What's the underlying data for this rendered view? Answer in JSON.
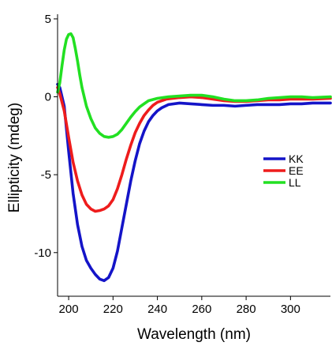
{
  "chart_data": {
    "type": "line",
    "xlabel": "Wavelength (nm)",
    "ylabel": "Ellipticity (mdeg)",
    "xlim": [
      195,
      318
    ],
    "ylim": [
      -12.8,
      5.3
    ],
    "x_ticks": [
      200,
      220,
      240,
      260,
      280,
      300
    ],
    "y_ticks": [
      5,
      0,
      -5,
      -10
    ],
    "grid": false,
    "legend_position": "right-center",
    "series": [
      {
        "name": "KK",
        "color": "#1414c8",
        "points": [
          [
            195,
            0.8
          ],
          [
            196,
            0.6
          ],
          [
            198,
            -0.6
          ],
          [
            200,
            -3.5
          ],
          [
            202,
            -6.2
          ],
          [
            204,
            -8.2
          ],
          [
            206,
            -9.6
          ],
          [
            208,
            -10.5
          ],
          [
            210,
            -11.0
          ],
          [
            212,
            -11.4
          ],
          [
            214,
            -11.7
          ],
          [
            216,
            -11.8
          ],
          [
            218,
            -11.6
          ],
          [
            220,
            -11.0
          ],
          [
            222,
            -9.9
          ],
          [
            224,
            -8.4
          ],
          [
            226,
            -6.9
          ],
          [
            228,
            -5.4
          ],
          [
            230,
            -4.1
          ],
          [
            232,
            -3.0
          ],
          [
            234,
            -2.2
          ],
          [
            236,
            -1.6
          ],
          [
            238,
            -1.2
          ],
          [
            240,
            -0.9
          ],
          [
            242,
            -0.7
          ],
          [
            245,
            -0.5
          ],
          [
            250,
            -0.4
          ],
          [
            255,
            -0.45
          ],
          [
            260,
            -0.5
          ],
          [
            265,
            -0.55
          ],
          [
            270,
            -0.55
          ],
          [
            275,
            -0.6
          ],
          [
            280,
            -0.55
          ],
          [
            285,
            -0.5
          ],
          [
            290,
            -0.5
          ],
          [
            295,
            -0.5
          ],
          [
            300,
            -0.45
          ],
          [
            305,
            -0.45
          ],
          [
            310,
            -0.4
          ],
          [
            318,
            -0.4
          ]
        ]
      },
      {
        "name": "EE",
        "color": "#ee1c1c",
        "points": [
          [
            195,
            0.6
          ],
          [
            196,
            0.2
          ],
          [
            198,
            -0.9
          ],
          [
            200,
            -2.6
          ],
          [
            202,
            -4.2
          ],
          [
            204,
            -5.4
          ],
          [
            206,
            -6.3
          ],
          [
            208,
            -6.9
          ],
          [
            210,
            -7.2
          ],
          [
            212,
            -7.35
          ],
          [
            214,
            -7.3
          ],
          [
            216,
            -7.2
          ],
          [
            218,
            -7.0
          ],
          [
            220,
            -6.6
          ],
          [
            222,
            -5.9
          ],
          [
            224,
            -5.0
          ],
          [
            226,
            -4.0
          ],
          [
            228,
            -3.1
          ],
          [
            230,
            -2.3
          ],
          [
            232,
            -1.7
          ],
          [
            234,
            -1.2
          ],
          [
            236,
            -0.85
          ],
          [
            238,
            -0.55
          ],
          [
            240,
            -0.35
          ],
          [
            244,
            -0.15
          ],
          [
            250,
            -0.05
          ],
          [
            255,
            0.0
          ],
          [
            260,
            -0.05
          ],
          [
            265,
            -0.15
          ],
          [
            270,
            -0.25
          ],
          [
            275,
            -0.3
          ],
          [
            280,
            -0.3
          ],
          [
            285,
            -0.25
          ],
          [
            290,
            -0.2
          ],
          [
            295,
            -0.2
          ],
          [
            300,
            -0.15
          ],
          [
            305,
            -0.15
          ],
          [
            310,
            -0.15
          ],
          [
            318,
            -0.1
          ]
        ]
      },
      {
        "name": "LL",
        "color": "#22e022",
        "points": [
          [
            195,
            0.3
          ],
          [
            196,
            0.9
          ],
          [
            197,
            2.0
          ],
          [
            198,
            3.0
          ],
          [
            199,
            3.7
          ],
          [
            200,
            4.0
          ],
          [
            201,
            4.05
          ],
          [
            202,
            3.8
          ],
          [
            203,
            3.1
          ],
          [
            204,
            2.3
          ],
          [
            205,
            1.4
          ],
          [
            206,
            0.6
          ],
          [
            208,
            -0.6
          ],
          [
            210,
            -1.4
          ],
          [
            212,
            -2.0
          ],
          [
            214,
            -2.35
          ],
          [
            216,
            -2.55
          ],
          [
            218,
            -2.6
          ],
          [
            220,
            -2.55
          ],
          [
            222,
            -2.4
          ],
          [
            224,
            -2.1
          ],
          [
            226,
            -1.7
          ],
          [
            228,
            -1.3
          ],
          [
            230,
            -0.95
          ],
          [
            232,
            -0.65
          ],
          [
            234,
            -0.45
          ],
          [
            236,
            -0.25
          ],
          [
            240,
            -0.1
          ],
          [
            245,
            0.0
          ],
          [
            250,
            0.05
          ],
          [
            255,
            0.1
          ],
          [
            260,
            0.1
          ],
          [
            265,
            0.0
          ],
          [
            270,
            -0.15
          ],
          [
            275,
            -0.25
          ],
          [
            280,
            -0.25
          ],
          [
            285,
            -0.2
          ],
          [
            290,
            -0.1
          ],
          [
            295,
            -0.05
          ],
          [
            300,
            0.0
          ],
          [
            305,
            0.0
          ],
          [
            310,
            -0.05
          ],
          [
            318,
            0.0
          ]
        ]
      }
    ]
  }
}
